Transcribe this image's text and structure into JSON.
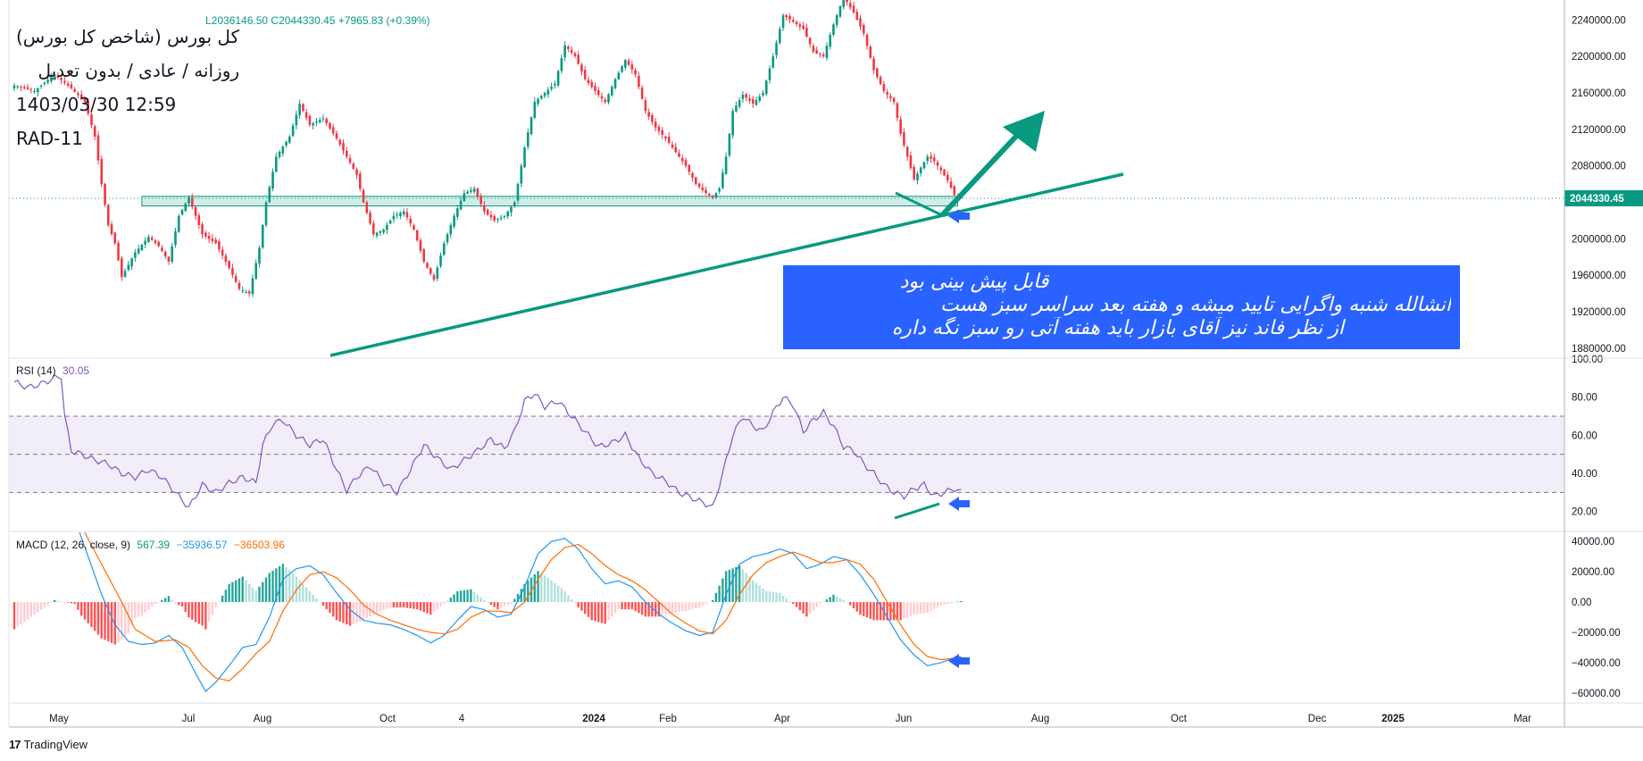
{
  "header": {
    "title": "کل بورس (شاخص کل بورس)",
    "interval": "روزانه / عادی / بدون تعدیل",
    "datetime": "1403/03/30 12:59",
    "author": "RAD-11",
    "ohlc": "L2036146.50  C2044330.45  +7965.83 (+0.39%)",
    "price_tag": "2044330.45"
  },
  "annotation": {
    "line1": "قابل پیش بینی بود",
    "line2": "انشالله شنبه واگرایی تایید میشه و هفته بعد سراسر سبز هست",
    "line3": "از نظر فاند نیز آقای بازار باید هفته آتی رو سبز نگه داره"
  },
  "rsi_label": {
    "name": "RSI (14)",
    "value": "30.05"
  },
  "macd_label": {
    "name": "MACD (12, 26, close, 9)",
    "hist": "567.39",
    "macd": "−35936.57",
    "signal": "−36503.96"
  },
  "branding": {
    "text": "TradingView"
  },
  "colors": {
    "up": "#089981",
    "down": "#f23645",
    "rsi": "#7e57c2",
    "macd": "#2196f3",
    "signal": "#ff6d00",
    "drawing": "#089981",
    "arrow": "#2962ff",
    "zone": "#089981"
  },
  "chart_data": {
    "type": "candlestick",
    "x_ticks": [
      "May",
      "Jul",
      "Aug",
      "Oct",
      "4",
      "2024",
      "Feb",
      "Apr",
      "Jun",
      "Aug",
      "Oct",
      "Dec",
      "2025",
      "Mar"
    ],
    "price_ticks": [
      "2240000.00",
      "2200000.00",
      "2160000.00",
      "2120000.00",
      "2080000.00",
      "2040000.00",
      "2000000.00",
      "1960000.00",
      "1920000.00",
      "1880000.00"
    ],
    "price_range": [
      1870000,
      2252000
    ],
    "last_price": 2044330.45,
    "price_path": [
      [
        0,
        2168000
      ],
      [
        6,
        2162000
      ],
      [
        12,
        2180000
      ],
      [
        17,
        2165000
      ],
      [
        21,
        2150000
      ],
      [
        24,
        2112000
      ],
      [
        26,
        2060000
      ],
      [
        28,
        2015000
      ],
      [
        30,
        1995000
      ],
      [
        32,
        1958000
      ],
      [
        36,
        1985000
      ],
      [
        40,
        2002000
      ],
      [
        43,
        1992000
      ],
      [
        46,
        1975000
      ],
      [
        49,
        2025000
      ],
      [
        52,
        2045000
      ],
      [
        56,
        2005000
      ],
      [
        60,
        1995000
      ],
      [
        64,
        1968000
      ],
      [
        67,
        1945000
      ],
      [
        70,
        1940000
      ],
      [
        73,
        1990000
      ],
      [
        75,
        2040000
      ],
      [
        78,
        2090000
      ],
      [
        82,
        2112000
      ],
      [
        85,
        2148000
      ],
      [
        88,
        2125000
      ],
      [
        92,
        2132000
      ],
      [
        96,
        2110000
      ],
      [
        99,
        2090000
      ],
      [
        102,
        2070000
      ],
      [
        104,
        2040000
      ],
      [
        107,
        2005000
      ],
      [
        110,
        2010000
      ],
      [
        113,
        2025000
      ],
      [
        116,
        2030000
      ],
      [
        119,
        2010000
      ],
      [
        122,
        1975000
      ],
      [
        125,
        1955000
      ],
      [
        128,
        1995000
      ],
      [
        131,
        2025000
      ],
      [
        134,
        2050000
      ],
      [
        137,
        2055000
      ],
      [
        140,
        2030000
      ],
      [
        143,
        2020000
      ],
      [
        146,
        2025000
      ],
      [
        149,
        2040000
      ],
      [
        152,
        2100000
      ],
      [
        155,
        2150000
      ],
      [
        158,
        2160000
      ],
      [
        161,
        2170000
      ],
      [
        164,
        2212000
      ],
      [
        167,
        2200000
      ],
      [
        170,
        2175000
      ],
      [
        173,
        2162000
      ],
      [
        176,
        2150000
      ],
      [
        179,
        2175000
      ],
      [
        182,
        2196000
      ],
      [
        185,
        2180000
      ],
      [
        188,
        2140000
      ],
      [
        191,
        2122000
      ],
      [
        194,
        2110000
      ],
      [
        197,
        2095000
      ],
      [
        200,
        2080000
      ],
      [
        203,
        2060000
      ],
      [
        206,
        2050000
      ],
      [
        208,
        2045000
      ],
      [
        210,
        2055000
      ],
      [
        212,
        2090000
      ],
      [
        214,
        2140000
      ],
      [
        217,
        2158000
      ],
      [
        220,
        2148000
      ],
      [
        223,
        2160000
      ],
      [
        226,
        2200000
      ],
      [
        229,
        2245000
      ],
      [
        232,
        2238000
      ],
      [
        235,
        2230000
      ],
      [
        238,
        2205000
      ],
      [
        241,
        2200000
      ],
      [
        244,
        2235000
      ],
      [
        247,
        2265000
      ],
      [
        250,
        2248000
      ],
      [
        253,
        2225000
      ],
      [
        256,
        2185000
      ],
      [
        259,
        2162000
      ],
      [
        262,
        2150000
      ],
      [
        264,
        2115000
      ],
      [
        266,
        2090000
      ],
      [
        268,
        2065000
      ],
      [
        270,
        2078000
      ],
      [
        272,
        2090000
      ],
      [
        274,
        2085000
      ],
      [
        276,
        2075000
      ],
      [
        278,
        2064000
      ],
      [
        280,
        2048000
      ],
      [
        282,
        2044330
      ]
    ],
    "rsi_ticks": [
      "100.00",
      "80.00",
      "60.00",
      "40.00",
      "20.00"
    ],
    "rsi_range": [
      10,
      100
    ],
    "rsi_bands": [
      30,
      50,
      70
    ],
    "rsi_last": 30.05,
    "rsi_path": [
      [
        0,
        88
      ],
      [
        4,
        85
      ],
      [
        8,
        87
      ],
      [
        12,
        90
      ],
      [
        14,
        91
      ],
      [
        15,
        70
      ],
      [
        17,
        52
      ],
      [
        20,
        50
      ],
      [
        24,
        47
      ],
      [
        28,
        45
      ],
      [
        32,
        40
      ],
      [
        36,
        38
      ],
      [
        40,
        42
      ],
      [
        44,
        38
      ],
      [
        48,
        30
      ],
      [
        52,
        22
      ],
      [
        56,
        34
      ],
      [
        60,
        30
      ],
      [
        64,
        35
      ],
      [
        68,
        38
      ],
      [
        72,
        35
      ],
      [
        74,
        55
      ],
      [
        77,
        66
      ],
      [
        80,
        68
      ],
      [
        84,
        60
      ],
      [
        88,
        55
      ],
      [
        92,
        58
      ],
      [
        96,
        42
      ],
      [
        99,
        31
      ],
      [
        102,
        38
      ],
      [
        106,
        44
      ],
      [
        110,
        35
      ],
      [
        114,
        30
      ],
      [
        118,
        42
      ],
      [
        122,
        55
      ],
      [
        126,
        48
      ],
      [
        130,
        42
      ],
      [
        134,
        47
      ],
      [
        138,
        52
      ],
      [
        142,
        58
      ],
      [
        146,
        53
      ],
      [
        149,
        62
      ],
      [
        152,
        78
      ],
      [
        155,
        82
      ],
      [
        158,
        75
      ],
      [
        162,
        78
      ],
      [
        166,
        70
      ],
      [
        170,
        62
      ],
      [
        174,
        54
      ],
      [
        178,
        56
      ],
      [
        182,
        60
      ],
      [
        186,
        48
      ],
      [
        190,
        40
      ],
      [
        194,
        36
      ],
      [
        198,
        30
      ],
      [
        202,
        27
      ],
      [
        206,
        24
      ],
      [
        208,
        22
      ],
      [
        211,
        40
      ],
      [
        214,
        60
      ],
      [
        217,
        70
      ],
      [
        220,
        65
      ],
      [
        223,
        62
      ],
      [
        226,
        72
      ],
      [
        229,
        80
      ],
      [
        232,
        76
      ],
      [
        235,
        62
      ],
      [
        238,
        68
      ],
      [
        241,
        72
      ],
      [
        244,
        65
      ],
      [
        247,
        54
      ],
      [
        250,
        52
      ],
      [
        253,
        45
      ],
      [
        256,
        40
      ],
      [
        259,
        34
      ],
      [
        262,
        30
      ],
      [
        265,
        28
      ],
      [
        268,
        32
      ],
      [
        271,
        34
      ],
      [
        274,
        28
      ],
      [
        277,
        30
      ],
      [
        280,
        32
      ],
      [
        282,
        30.05
      ]
    ],
    "macd_ticks": [
      "40000.00",
      "20000.00",
      "0.00",
      "−20000.00",
      "−40000.00",
      "−60000.00"
    ],
    "macd_range": [
      -66000,
      46000
    ],
    "macd_last": -35936.57,
    "signal_last": -36503.96,
    "hist_last": 567.39,
    "macd_path": [
      [
        0,
        95000
      ],
      [
        12,
        75000
      ],
      [
        18,
        55000
      ],
      [
        22,
        30000
      ],
      [
        26,
        5000
      ],
      [
        30,
        -15000
      ],
      [
        34,
        -26000
      ],
      [
        38,
        -28000
      ],
      [
        42,
        -27000
      ],
      [
        46,
        -22000
      ],
      [
        50,
        -30000
      ],
      [
        54,
        -47000
      ],
      [
        57,
        -59000
      ],
      [
        60,
        -53000
      ],
      [
        64,
        -42000
      ],
      [
        68,
        -30000
      ],
      [
        72,
        -28000
      ],
      [
        76,
        -10000
      ],
      [
        80,
        15000
      ],
      [
        84,
        22000
      ],
      [
        88,
        24000
      ],
      [
        92,
        18000
      ],
      [
        96,
        6000
      ],
      [
        100,
        -5000
      ],
      [
        104,
        -12000
      ],
      [
        108,
        -14000
      ],
      [
        112,
        -15000
      ],
      [
        116,
        -18000
      ],
      [
        120,
        -22000
      ],
      [
        124,
        -27000
      ],
      [
        128,
        -22000
      ],
      [
        132,
        -12000
      ],
      [
        136,
        -3000
      ],
      [
        140,
        -5000
      ],
      [
        144,
        -10000
      ],
      [
        148,
        -8000
      ],
      [
        152,
        10000
      ],
      [
        156,
        32000
      ],
      [
        160,
        40000
      ],
      [
        164,
        42000
      ],
      [
        168,
        35000
      ],
      [
        172,
        22000
      ],
      [
        176,
        12000
      ],
      [
        180,
        14000
      ],
      [
        184,
        10000
      ],
      [
        188,
        0
      ],
      [
        192,
        -8000
      ],
      [
        196,
        -14000
      ],
      [
        200,
        -19000
      ],
      [
        204,
        -22000
      ],
      [
        208,
        -20000
      ],
      [
        212,
        5000
      ],
      [
        216,
        25000
      ],
      [
        220,
        30000
      ],
      [
        224,
        32000
      ],
      [
        228,
        35000
      ],
      [
        232,
        32000
      ],
      [
        236,
        22000
      ],
      [
        240,
        25000
      ],
      [
        244,
        30000
      ],
      [
        248,
        28000
      ],
      [
        252,
        18000
      ],
      [
        256,
        5000
      ],
      [
        260,
        -10000
      ],
      [
        264,
        -25000
      ],
      [
        268,
        -35000
      ],
      [
        272,
        -42000
      ],
      [
        276,
        -40000
      ],
      [
        280,
        -37000
      ],
      [
        282,
        -35936.57
      ]
    ],
    "signal_path": [
      [
        0,
        110000
      ],
      [
        20,
        50000
      ],
      [
        26,
        25000
      ],
      [
        32,
        0
      ],
      [
        36,
        -18000
      ],
      [
        42,
        -26000
      ],
      [
        48,
        -25000
      ],
      [
        52,
        -30000
      ],
      [
        56,
        -42000
      ],
      [
        60,
        -50000
      ],
      [
        64,
        -52000
      ],
      [
        68,
        -44000
      ],
      [
        72,
        -34000
      ],
      [
        76,
        -26000
      ],
      [
        80,
        -6000
      ],
      [
        84,
        8000
      ],
      [
        88,
        18000
      ],
      [
        92,
        20000
      ],
      [
        96,
        16000
      ],
      [
        100,
        8000
      ],
      [
        104,
        -2000
      ],
      [
        108,
        -8000
      ],
      [
        112,
        -12000
      ],
      [
        116,
        -15000
      ],
      [
        120,
        -18000
      ],
      [
        124,
        -20000
      ],
      [
        128,
        -21000
      ],
      [
        132,
        -18000
      ],
      [
        136,
        -10000
      ],
      [
        140,
        -6000
      ],
      [
        144,
        -6000
      ],
      [
        148,
        -7000
      ],
      [
        152,
        0
      ],
      [
        156,
        15000
      ],
      [
        160,
        28000
      ],
      [
        164,
        36000
      ],
      [
        168,
        38000
      ],
      [
        172,
        32000
      ],
      [
        176,
        24000
      ],
      [
        180,
        18000
      ],
      [
        184,
        14000
      ],
      [
        188,
        8000
      ],
      [
        192,
        0
      ],
      [
        196,
        -8000
      ],
      [
        200,
        -14000
      ],
      [
        204,
        -19000
      ],
      [
        208,
        -21000
      ],
      [
        212,
        -12000
      ],
      [
        216,
        5000
      ],
      [
        220,
        18000
      ],
      [
        224,
        26000
      ],
      [
        228,
        30000
      ],
      [
        232,
        33000
      ],
      [
        236,
        30000
      ],
      [
        240,
        26000
      ],
      [
        244,
        26000
      ],
      [
        248,
        28000
      ],
      [
        252,
        25000
      ],
      [
        256,
        15000
      ],
      [
        260,
        0
      ],
      [
        264,
        -15000
      ],
      [
        268,
        -28000
      ],
      [
        272,
        -36000
      ],
      [
        276,
        -38000
      ],
      [
        280,
        -37000
      ],
      [
        282,
        -36503.96
      ]
    ]
  }
}
